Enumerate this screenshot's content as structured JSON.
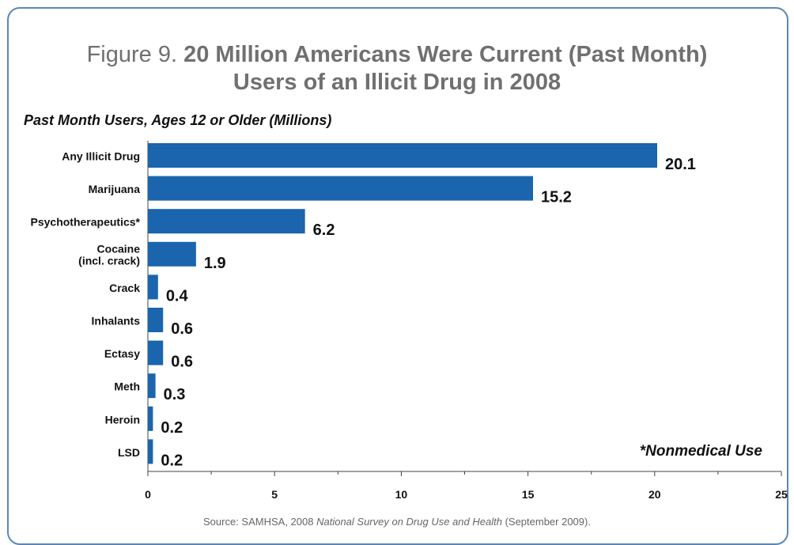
{
  "title": {
    "prefix": "Figure 9. ",
    "line1": "20 Million Americans Were Current (Past Month)",
    "line2": "Users of an Illicit Drug in 2008"
  },
  "subtitle": "Past Month Users, Ages 12 or Older (Millions)",
  "footnote": "*Nonmedical Use",
  "source": {
    "prefix": "Source: SAMHSA, 2008 ",
    "italic": "National Survey on Drug Use and Health",
    "suffix": " (September 2009)."
  },
  "colors": {
    "bar": "#1a65ad",
    "frame": "#5b87b5",
    "title": "#707070"
  },
  "chart_data": {
    "type": "bar",
    "orientation": "horizontal",
    "categories": [
      "Any Illicit Drug",
      "Marijuana",
      "Psychotherapeutics*",
      "Cocaine\n(incl. crack)",
      "Crack",
      "Inhalants",
      "Ectasy",
      "Meth",
      "Heroin",
      "LSD"
    ],
    "values": [
      20.1,
      15.2,
      6.2,
      1.9,
      0.4,
      0.6,
      0.6,
      0.3,
      0.2,
      0.2
    ],
    "value_labels": [
      "20.1",
      "15.2",
      "6.2",
      "1.9",
      "0.4",
      "0.6",
      "0.6",
      "0.3",
      "0.2",
      "0.2"
    ],
    "xlim": [
      0,
      25
    ],
    "xticks": [
      0,
      5,
      10,
      15,
      20,
      25
    ],
    "grid": false,
    "legend": "none"
  }
}
